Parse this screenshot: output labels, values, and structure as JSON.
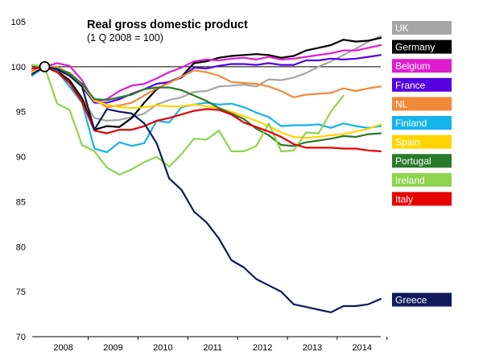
{
  "chart_data": {
    "type": "line",
    "title": "Real gross domestic product",
    "subtitle": "(1 Q 2008 = 100)",
    "xlabel": "",
    "ylabel": "",
    "x_ticks": [
      "2008",
      "2009",
      "2010",
      "2011",
      "2012",
      "2013",
      "2014"
    ],
    "y_ticks": [
      70,
      75,
      80,
      85,
      90,
      95,
      100,
      105
    ],
    "ylim": [
      70,
      105
    ],
    "x_range": [
      2007.75,
      2014.75
    ],
    "reference_value": 100,
    "series": [
      {
        "name": "UK",
        "color": "#a6a6a6",
        "x": [
          2007.75,
          2008.0,
          2008.25,
          2008.5,
          2008.75,
          2009.0,
          2009.25,
          2009.5,
          2009.75,
          2010.0,
          2010.25,
          2010.5,
          2010.75,
          2011.0,
          2011.25,
          2011.5,
          2011.75,
          2012.0,
          2012.25,
          2012.5,
          2012.75,
          2013.0,
          2013.25,
          2013.5,
          2013.75,
          2014.0,
          2014.25,
          2014.5,
          2014.75
        ],
        "values": [
          99.5,
          100,
          99.6,
          98.5,
          96.5,
          94.3,
          94.0,
          94.1,
          94.4,
          94.8,
          95.8,
          96.3,
          96.6,
          97.2,
          97.3,
          97.8,
          97.9,
          98.0,
          97.8,
          98.6,
          98.5,
          98.8,
          99.3,
          100.0,
          100.6,
          101.3,
          102.0,
          102.8,
          103.4
        ]
      },
      {
        "name": "Germany",
        "color": "#000000",
        "x": [
          2007.75,
          2008.0,
          2008.25,
          2008.5,
          2008.75,
          2009.0,
          2009.25,
          2009.5,
          2009.75,
          2010.0,
          2010.25,
          2010.5,
          2010.75,
          2011.0,
          2011.25,
          2011.5,
          2011.75,
          2012.0,
          2012.25,
          2012.5,
          2012.75,
          2013.0,
          2013.25,
          2013.5,
          2013.75,
          2014.0,
          2014.25,
          2014.5,
          2014.75
        ],
        "values": [
          99.1,
          100,
          99.5,
          98.5,
          96.5,
          93.0,
          93.4,
          93.3,
          94.3,
          96.0,
          97.5,
          98.3,
          98.9,
          100.4,
          100.6,
          101.0,
          101.2,
          101.3,
          101.4,
          101.3,
          101.0,
          101.2,
          101.8,
          102.1,
          102.4,
          103.0,
          102.8,
          102.9,
          103.2
        ]
      },
      {
        "name": "Belgium",
        "color": "#e01ccf",
        "x": [
          2007.75,
          2008.0,
          2008.25,
          2008.5,
          2008.75,
          2009.0,
          2009.25,
          2009.5,
          2009.75,
          2010.0,
          2010.25,
          2010.5,
          2010.75,
          2011.0,
          2011.25,
          2011.5,
          2011.75,
          2012.0,
          2012.25,
          2012.5,
          2012.75,
          2013.0,
          2013.25,
          2013.5,
          2013.75,
          2014.0,
          2014.25,
          2014.5,
          2014.75
        ],
        "values": [
          99.5,
          100,
          100.4,
          100.1,
          98.5,
          96.1,
          96.4,
          97.3,
          97.9,
          98.1,
          98.7,
          99.4,
          99.9,
          100.6,
          100.8,
          100.7,
          100.9,
          101.0,
          100.8,
          101.1,
          100.8,
          100.9,
          101.1,
          101.3,
          101.5,
          101.8,
          101.8,
          102.1,
          102.4
        ]
      },
      {
        "name": "France",
        "color": "#5500e0",
        "x": [
          2007.75,
          2008.0,
          2008.25,
          2008.5,
          2008.75,
          2009.0,
          2009.25,
          2009.5,
          2009.75,
          2010.0,
          2010.25,
          2010.5,
          2010.75,
          2011.0,
          2011.25,
          2011.5,
          2011.75,
          2012.0,
          2012.25,
          2012.5,
          2012.75,
          2013.0,
          2013.25,
          2013.5,
          2013.75,
          2014.0,
          2014.25,
          2014.5,
          2014.75
        ],
        "values": [
          99.8,
          100,
          99.7,
          99.3,
          97.8,
          96.0,
          96.0,
          96.4,
          97.0,
          97.5,
          98.1,
          98.3,
          98.8,
          99.9,
          99.8,
          100.1,
          100.3,
          100.3,
          100.2,
          100.4,
          100.2,
          100.2,
          100.7,
          100.7,
          100.9,
          100.8,
          100.9,
          101.1,
          101.3
        ]
      },
      {
        "name": "NL",
        "color": "#f08a3a",
        "x": [
          2007.75,
          2008.0,
          2008.25,
          2008.5,
          2008.75,
          2009.0,
          2009.25,
          2009.5,
          2009.75,
          2010.0,
          2010.25,
          2010.5,
          2010.75,
          2011.0,
          2011.25,
          2011.5,
          2011.75,
          2012.0,
          2012.25,
          2012.5,
          2012.75,
          2013.0,
          2013.25,
          2013.5,
          2013.75,
          2014.0,
          2014.25,
          2014.5,
          2014.75
        ],
        "values": [
          99.4,
          100,
          100.0,
          99.2,
          98.0,
          96.4,
          95.5,
          95.7,
          96.0,
          96.8,
          97.6,
          98.2,
          98.9,
          99.6,
          99.4,
          99.0,
          98.3,
          98.2,
          98.1,
          97.8,
          97.3,
          96.6,
          96.9,
          97.0,
          97.1,
          97.6,
          97.3,
          97.6,
          97.8
        ]
      },
      {
        "name": "Finland",
        "color": "#14b4ec",
        "x": [
          2007.75,
          2008.0,
          2008.25,
          2008.5,
          2008.75,
          2009.0,
          2009.25,
          2009.5,
          2009.75,
          2010.0,
          2010.25,
          2010.5,
          2010.75,
          2011.0,
          2011.25,
          2011.5,
          2011.75,
          2012.0,
          2012.25,
          2012.5,
          2012.75,
          2013.0,
          2013.25,
          2013.5,
          2013.75,
          2014.0,
          2014.25,
          2014.5,
          2014.75
        ],
        "values": [
          99.0,
          100,
          99.5,
          97.8,
          96.0,
          90.9,
          90.5,
          91.6,
          91.2,
          91.5,
          94.0,
          93.8,
          95.5,
          95.8,
          96.0,
          95.8,
          95.9,
          95.5,
          94.9,
          94.4,
          93.4,
          93.5,
          93.5,
          93.6,
          93.2,
          93.7,
          93.4,
          93.2,
          93.4
        ]
      },
      {
        "name": "Spain",
        "color": "#ffd500",
        "x": [
          2007.75,
          2008.0,
          2008.25,
          2008.5,
          2008.75,
          2009.0,
          2009.25,
          2009.5,
          2009.75,
          2010.0,
          2010.25,
          2010.5,
          2010.75,
          2011.0,
          2011.25,
          2011.5,
          2011.75,
          2012.0,
          2012.25,
          2012.5,
          2012.75,
          2013.0,
          2013.25,
          2013.5,
          2013.75,
          2014.0,
          2014.25,
          2014.5,
          2014.75
        ],
        "values": [
          99.4,
          100,
          99.8,
          99.3,
          98.0,
          96.2,
          95.8,
          95.5,
          95.4,
          95.5,
          95.7,
          95.6,
          95.6,
          95.8,
          95.6,
          95.4,
          95.0,
          94.5,
          94.0,
          93.4,
          92.7,
          92.2,
          92.1,
          92.2,
          92.4,
          92.5,
          92.8,
          93.1,
          93.6
        ]
      },
      {
        "name": "Portugal",
        "color": "#2b7a2b",
        "x": [
          2007.75,
          2008.0,
          2008.25,
          2008.5,
          2008.75,
          2009.0,
          2009.25,
          2009.5,
          2009.75,
          2010.0,
          2010.25,
          2010.5,
          2010.75,
          2011.0,
          2011.25,
          2011.5,
          2011.75,
          2012.0,
          2012.25,
          2012.5,
          2012.75,
          2013.0,
          2013.25,
          2013.5,
          2013.75,
          2014.0,
          2014.25,
          2014.5,
          2014.75
        ],
        "values": [
          100.1,
          100,
          99.8,
          99.3,
          98.1,
          96.4,
          96.3,
          96.6,
          96.9,
          97.5,
          97.7,
          97.7,
          97.4,
          96.8,
          96.2,
          95.4,
          94.8,
          94.2,
          93.1,
          92.4,
          91.3,
          91.2,
          91.6,
          91.8,
          92.0,
          92.3,
          92.2,
          92.5,
          92.6
        ]
      },
      {
        "name": "Ireland",
        "color": "#8fd44e",
        "x": [
          2007.75,
          2008.0,
          2008.25,
          2008.5,
          2008.75,
          2009.0,
          2009.25,
          2009.5,
          2009.75,
          2010.0,
          2010.25,
          2010.5,
          2010.75,
          2011.0,
          2011.25,
          2011.5,
          2011.75,
          2012.0,
          2012.25,
          2012.5,
          2012.75,
          2013.0,
          2013.25,
          2013.5,
          2013.75,
          2014.0,
          2014.25,
          2014.5,
          2014.75
        ],
        "values": [
          100.2,
          100,
          95.9,
          95.2,
          91.3,
          90.6,
          88.8,
          88.0,
          88.6,
          89.4,
          90.0,
          88.9,
          90.3,
          92.0,
          91.9,
          92.9,
          90.6,
          90.6,
          91.2,
          93.7,
          90.6,
          90.7,
          92.7,
          92.6,
          95.0,
          96.8,
          null,
          null,
          null
        ]
      },
      {
        "name": "Italy",
        "color": "#e60000",
        "x": [
          2007.75,
          2008.0,
          2008.25,
          2008.5,
          2008.75,
          2009.0,
          2009.25,
          2009.5,
          2009.75,
          2010.0,
          2010.25,
          2010.5,
          2010.75,
          2011.0,
          2011.25,
          2011.5,
          2011.75,
          2012.0,
          2012.25,
          2012.5,
          2012.75,
          2013.0,
          2013.25,
          2013.5,
          2013.75,
          2014.0,
          2014.25,
          2014.5,
          2014.75
        ],
        "values": [
          99.8,
          100,
          99.4,
          98.2,
          96.1,
          92.9,
          92.6,
          93.0,
          93.0,
          93.4,
          94.0,
          94.3,
          94.7,
          95.1,
          95.3,
          95.2,
          94.7,
          93.8,
          93.3,
          92.8,
          92.2,
          91.4,
          91.0,
          91.0,
          91.0,
          90.9,
          90.9,
          90.7,
          90.6
        ]
      },
      {
        "name": "Greece",
        "color": "#0f1a5c",
        "x": [
          2007.75,
          2008.0,
          2008.25,
          2008.5,
          2008.75,
          2009.0,
          2009.25,
          2009.5,
          2009.75,
          2010.0,
          2010.25,
          2010.5,
          2010.75,
          2011.0,
          2011.25,
          2011.5,
          2011.75,
          2012.0,
          2012.25,
          2012.5,
          2012.75,
          2013.0,
          2013.25,
          2013.5,
          2013.75,
          2014.0,
          2014.25,
          2014.5,
          2014.75
        ],
        "values": [
          99.2,
          100,
          99.7,
          99.0,
          97.8,
          93.0,
          95.3,
          95.0,
          94.8,
          93.7,
          91.5,
          87.6,
          86.3,
          83.9,
          82.7,
          80.9,
          78.5,
          77.7,
          76.4,
          75.7,
          75.0,
          73.6,
          73.3,
          73.0,
          72.7,
          73.4,
          73.4,
          73.6,
          74.2
        ]
      }
    ],
    "legend_position": "right"
  }
}
